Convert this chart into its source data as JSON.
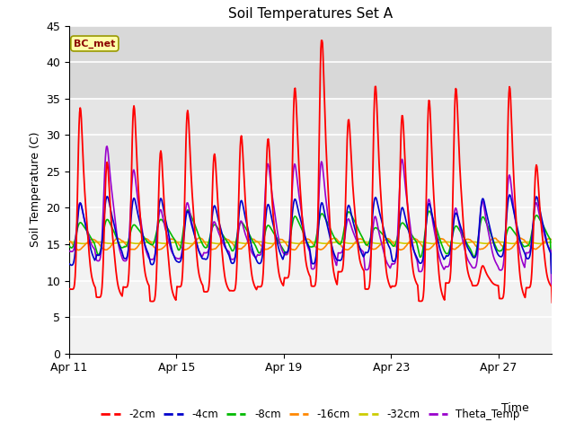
{
  "title": "Soil Temperatures Set A",
  "xlabel": "Time",
  "ylabel": "Soil Temperature (C)",
  "ylim": [
    0,
    45
  ],
  "yticks": [
    0,
    5,
    10,
    15,
    20,
    25,
    30,
    35,
    40,
    45
  ],
  "date_labels": [
    "Apr 11",
    "Apr 15",
    "Apr 19",
    "Apr 23",
    "Apr 27"
  ],
  "x_tick_days": [
    0,
    4,
    8,
    12,
    16
  ],
  "annotation": "BC_met",
  "annotation_color": "#8B0000",
  "annotation_bg": "#FFFFAA",
  "annotation_edge": "#999900",
  "series_colors": {
    "-2cm": "#FF0000",
    "-4cm": "#0000CC",
    "-8cm": "#00BB00",
    "-16cm": "#FF8800",
    "-32cm": "#CCCC00",
    "Theta_Temp": "#9900CC"
  },
  "n_days": 18,
  "samples_per_day": 48,
  "fig_width": 6.4,
  "fig_height": 4.8,
  "dpi": 100,
  "band1_ymin": 35,
  "band1_ymax": 45,
  "band1_color": "#D8D8D8",
  "band2_ymin": 25,
  "band2_ymax": 35,
  "band2_color": "#E5E5E5",
  "plot_bg": "#F2F2F2",
  "grid_color": "#FFFFFF",
  "grid_lw": 1.2
}
